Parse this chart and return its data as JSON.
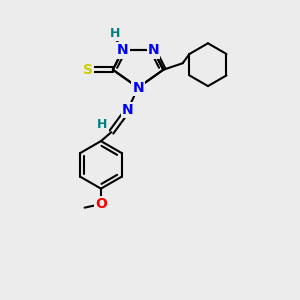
{
  "bg_color": "#ececec",
  "atom_colors": {
    "N": "#0000ff",
    "S": "#cccc00",
    "O": "#ff0000",
    "C": "#000000",
    "H_label": "#008080"
  },
  "bond_color": "#000000",
  "bond_width": 1.5,
  "font_size_atoms": 10,
  "font_size_h": 9
}
